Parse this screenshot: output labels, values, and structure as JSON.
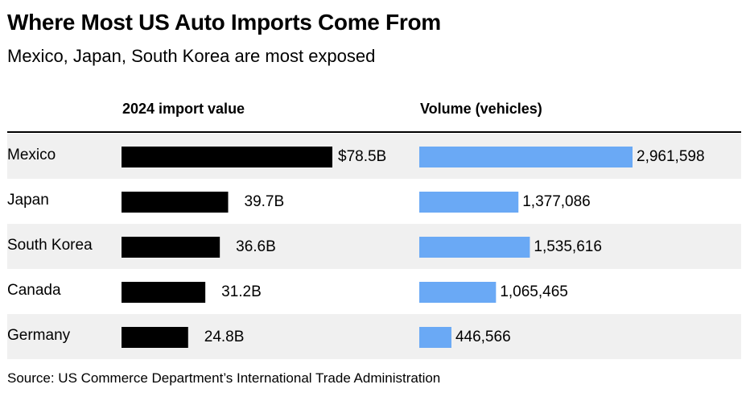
{
  "title": "Where Most US Auto Imports Come From",
  "subtitle": "Mexico, Japan, South Korea are most exposed",
  "source": "Source: US Commerce Department’s International Trade Administration",
  "colors": {
    "value_bar": "#000000",
    "volume_bar": "#6aa9f5",
    "stripe": "#f0f0f0"
  },
  "chart_data": {
    "type": "bar",
    "orientation": "horizontal",
    "categories": [
      "Mexico",
      "Japan",
      "South Korea",
      "Canada",
      "Germany"
    ],
    "series": [
      {
        "name": "2024 import value",
        "values": [
          78.5,
          39.7,
          36.6,
          31.2,
          24.8
        ],
        "labels": [
          "$78.5B",
          "39.7B",
          "36.6B",
          "31.2B",
          "24.8B"
        ]
      },
      {
        "name": "Volume (vehicles)",
        "values": [
          2961598,
          1377086,
          1535616,
          1065465,
          446566
        ],
        "labels": [
          "2,961,598",
          "1,377,086",
          "1,535,616",
          "1,065,465",
          "446,566"
        ]
      }
    ]
  }
}
